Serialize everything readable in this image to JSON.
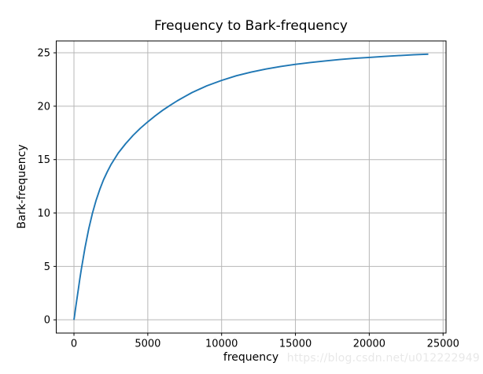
{
  "chart_data": {
    "type": "line",
    "title": "Frequency to Bark-frequency",
    "xlabel": "frequency",
    "ylabel": "Bark-frequency",
    "x": [
      0,
      50,
      100,
      200,
      300,
      400,
      500,
      750,
      1000,
      1250,
      1500,
      1750,
      2000,
      2250,
      2500,
      3000,
      3500,
      4000,
      4500,
      5000,
      5500,
      6000,
      6500,
      7000,
      7500,
      8000,
      9000,
      10000,
      11000,
      12000,
      13000,
      14000,
      15000,
      16000,
      17000,
      18000,
      19000,
      20000,
      21000,
      22000,
      23000,
      24000
    ],
    "y": [
      0.0,
      0.49,
      0.99,
      1.96,
      2.92,
      3.85,
      4.74,
      6.77,
      8.51,
      9.97,
      11.2,
      12.22,
      13.11,
      13.85,
      14.51,
      15.61,
      16.49,
      17.26,
      17.94,
      18.54,
      19.1,
      19.61,
      20.07,
      20.51,
      20.9,
      21.28,
      21.91,
      22.42,
      22.85,
      23.19,
      23.48,
      23.72,
      23.92,
      24.09,
      24.24,
      24.37,
      24.48,
      24.57,
      24.66,
      24.74,
      24.81,
      24.87
    ],
    "xticks": [
      0,
      5000,
      10000,
      15000,
      20000,
      25000
    ],
    "yticks": [
      0,
      5,
      10,
      15,
      20,
      25
    ],
    "xlim": [
      -1200,
      25200
    ],
    "ylim": [
      -1.24,
      26.11
    ],
    "grid": true,
    "legend": false,
    "line_color": "#1f77b4",
    "grid_color": "#b7b7b7",
    "spine_color": "#000000",
    "tick_color": "#000000",
    "tick_label_color": "#000000"
  },
  "watermark": {
    "text": "https://blog.csdn.net/u012222949",
    "color": "#e8e8e8"
  }
}
